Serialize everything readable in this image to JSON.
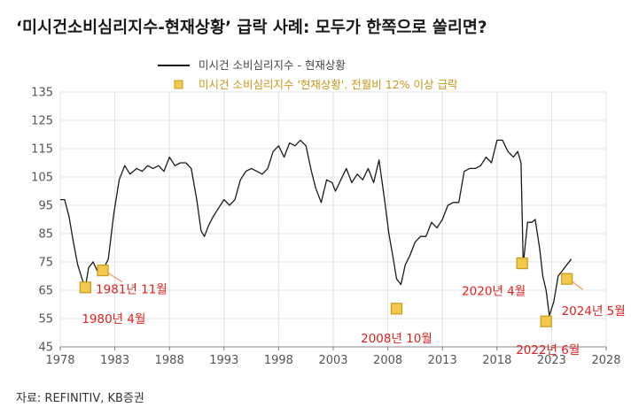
{
  "chart_data": {
    "type": "line",
    "title": "‘미시건소비심리지수-현재상황’ 급락 사례: 모두가 한쪽으로 쏠리면?",
    "source": "자료: REFINITIV, KB증권",
    "ylim": [
      45,
      135
    ],
    "xlim": [
      1978,
      2028
    ],
    "yticks": [
      45,
      55,
      65,
      75,
      85,
      95,
      105,
      115,
      125,
      135
    ],
    "xticks": [
      1978,
      1983,
      1988,
      1993,
      1998,
      2003,
      2008,
      2013,
      2018,
      2023,
      2028
    ],
    "grid": true,
    "legend_position": "top-center",
    "series": [
      {
        "name": "미시건 소비심리지수 - 현재상황",
        "color": "#1a1a1a",
        "x": [
          1978.0,
          1978.4,
          1978.8,
          1979.2,
          1979.6,
          1980.0,
          1980.3,
          1980.6,
          1981.0,
          1981.5,
          1981.9,
          1982.4,
          1982.9,
          1983.4,
          1983.9,
          1984.4,
          1985.0,
          1985.5,
          1986.0,
          1986.5,
          1987.0,
          1987.5,
          1988.0,
          1988.5,
          1989.0,
          1989.5,
          1990.0,
          1990.5,
          1990.9,
          1991.2,
          1991.6,
          1992.0,
          1992.5,
          1993.0,
          1993.5,
          1994.0,
          1994.5,
          1995.0,
          1995.5,
          1996.0,
          1996.5,
          1997.0,
          1997.5,
          1998.0,
          1998.5,
          1999.0,
          1999.5,
          2000.0,
          2000.5,
          2001.0,
          2001.4,
          2001.9,
          2002.4,
          2002.9,
          2003.2,
          2003.7,
          2004.2,
          2004.7,
          2005.2,
          2005.7,
          2006.2,
          2006.7,
          2007.2,
          2007.7,
          2008.1,
          2008.5,
          2008.8,
          2009.2,
          2009.6,
          2010.0,
          2010.5,
          2011.0,
          2011.5,
          2012.0,
          2012.5,
          2013.0,
          2013.5,
          2014.0,
          2014.5,
          2015.0,
          2015.5,
          2016.0,
          2016.5,
          2017.0,
          2017.5,
          2018.0,
          2018.5,
          2019.0,
          2019.5,
          2019.9,
          2020.2,
          2020.4,
          2020.8,
          2021.2,
          2021.5,
          2021.9,
          2022.2,
          2022.5,
          2022.8,
          2023.2,
          2023.6,
          2024.0,
          2024.4,
          2024.8
        ],
        "values": [
          97,
          97,
          91,
          82,
          74,
          69,
          66,
          73,
          75,
          71,
          72,
          76,
          92,
          104,
          109,
          106,
          108,
          107,
          109,
          108,
          109,
          107,
          112,
          109,
          110,
          110,
          108,
          97,
          86,
          84,
          88,
          91,
          94,
          97,
          95,
          97,
          104,
          107,
          108,
          107,
          106,
          108,
          114,
          116,
          112,
          117,
          116,
          118,
          116,
          107,
          101,
          96,
          104,
          103,
          100,
          104,
          108,
          103,
          106,
          104,
          108,
          103,
          111,
          97,
          85,
          76,
          69,
          67,
          74,
          77,
          82,
          84,
          84,
          89,
          87,
          90,
          95,
          96,
          96,
          107,
          108,
          108,
          109,
          112,
          110,
          118,
          118,
          114,
          112,
          114,
          110,
          74,
          89,
          89,
          90,
          80,
          70,
          65,
          56,
          61,
          70,
          72,
          74,
          76
        ]
      },
      {
        "name": "미시건 소비심리지수 '현재상황'. 전월비 12% 이상 급락",
        "color": "#f2c94c",
        "edge": "#c89a1a",
        "x": [
          1980.3,
          1981.9,
          2008.8,
          2020.3,
          2022.5,
          2024.4
        ],
        "values": [
          66,
          72,
          58.5,
          74.5,
          54,
          69
        ]
      }
    ],
    "annotations": [
      {
        "text": "1980년 4월",
        "point": 0
      },
      {
        "text": "1981년 11월",
        "point": 1
      },
      {
        "text": "2008년 10월",
        "point": 2
      },
      {
        "text": "2020년 4월",
        "point": 3
      },
      {
        "text": "2022년 6월",
        "point": 4
      },
      {
        "text": "2024년 5월",
        "point": 5
      }
    ]
  }
}
